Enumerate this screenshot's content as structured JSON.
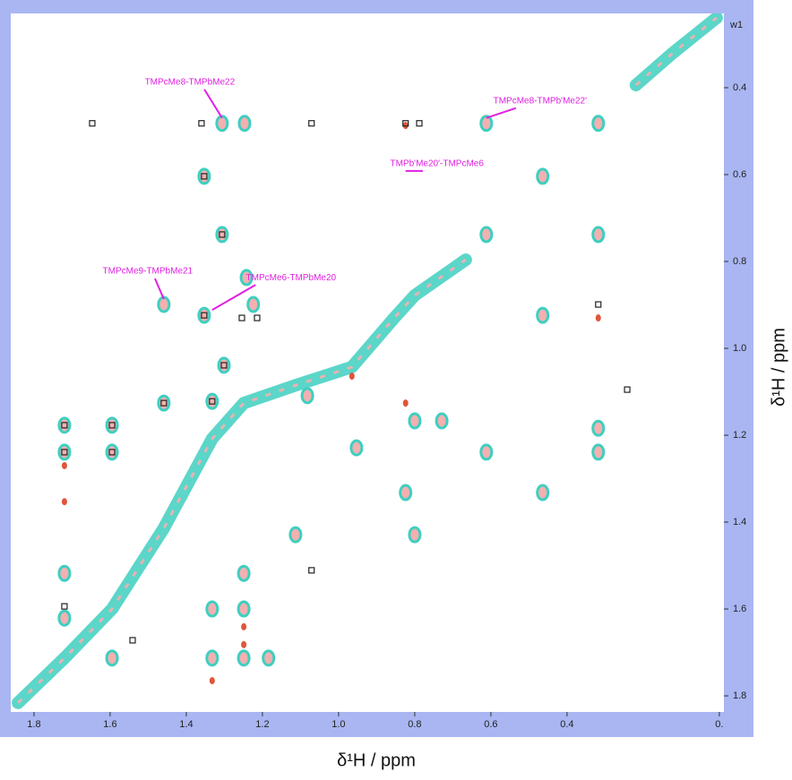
{
  "chart_data": {
    "type": "scatter",
    "x_label": "δ¹H / ppm",
    "y_label": "δ¹H / ppm",
    "corner_label": "w1",
    "xlim": [
      1.861,
      -0.012
    ],
    "ylim": [
      0.229,
      1.837
    ],
    "xticks": [
      1.8,
      1.6,
      1.4,
      1.2,
      {
        "value": 1,
        "label": "1.0"
      },
      0.8,
      0.6,
      0.4,
      {
        "value": 0,
        "label": "0."
      }
    ],
    "yticks": [
      0.4,
      0.6,
      0.8,
      {
        "value": 1,
        "label": "1.0"
      },
      1.2,
      1.4,
      1.6,
      1.8
    ],
    "series": [
      {
        "marker": "line",
        "color": "#3ecfc0",
        "x": [
          1.842,
          1.72,
          1.595,
          1.459,
          1.332,
          1.249,
          1.113,
          0.965,
          0.854,
          0.8,
          0.666,
          null,
          0.219,
          0.125,
          0.007
        ],
        "values": [
          1.816,
          1.713,
          1.6,
          1.414,
          1.208,
          1.126,
          1.085,
          1.043,
          0.93,
          0.878,
          0.796,
          null,
          0.394,
          0.322,
          0.239
        ]
      },
      {
        "marker": "ellipse",
        "color": "#3ecfc0",
        "x": [
          1.306,
          1.247,
          0.612,
          0.318,
          1.353,
          0.464,
          1.306,
          0.612,
          0.318,
          1.242,
          1.459,
          1.224,
          1.353,
          0.464,
          1.301,
          1.459,
          1.72,
          1.595,
          1.332,
          1.72,
          1.595,
          1.082,
          0.8,
          0.729,
          0.318,
          0.318,
          0.612,
          0.953,
          0.464,
          0.824,
          0.8,
          1.113,
          1.72,
          1.249,
          1.72,
          1.332,
          1.249,
          1.332,
          1.595,
          1.249,
          1.184
        ],
        "values": [
          0.482,
          0.482,
          0.482,
          0.482,
          0.604,
          0.604,
          0.738,
          0.738,
          0.738,
          0.837,
          0.899,
          0.899,
          0.924,
          0.924,
          1.039,
          1.126,
          1.177,
          1.177,
          1.122,
          1.239,
          1.239,
          1.109,
          1.167,
          1.167,
          1.184,
          1.239,
          1.239,
          1.229,
          1.332,
          1.332,
          1.429,
          1.429,
          1.518,
          1.518,
          1.621,
          1.6,
          1.6,
          1.713,
          1.713,
          1.713,
          1.713
        ]
      },
      {
        "marker": "dot",
        "color": "#e0553a",
        "x": [
          0.824,
          0.318,
          0.824,
          1.72,
          1.72,
          1.249,
          1.249,
          0.965,
          1.332
        ],
        "values": [
          0.487,
          0.93,
          1.126,
          1.27,
          1.353,
          1.641,
          1.682,
          1.064,
          1.765
        ]
      },
      {
        "marker": "box",
        "color": "#222222",
        "x": [
          1.647,
          1.36,
          1.071,
          0.824,
          0.788,
          1.353,
          1.306,
          1.353,
          1.254,
          1.214,
          0.318,
          1.301,
          1.459,
          1.72,
          1.595,
          1.332,
          1.72,
          1.595,
          1.071,
          1.72,
          1.541,
          0.242
        ],
        "values": [
          0.482,
          0.482,
          0.482,
          0.482,
          0.482,
          0.604,
          0.738,
          0.924,
          0.93,
          0.93,
          0.899,
          1.039,
          1.126,
          1.177,
          1.177,
          1.122,
          1.239,
          1.239,
          1.511,
          1.594,
          1.672,
          1.095
        ]
      }
    ],
    "annotation_color": "#e020e0",
    "annotations": [
      {
        "text": "TMPcMe8-TMPbMe22",
        "x": 1.306,
        "y": 0.482
      },
      {
        "text": "TMPcMe8-TMPb'Me22'",
        "x": 0.612,
        "y": 0.482
      },
      {
        "text": "TMPb'Me20'-TMPcMe6",
        "x": 0.824,
        "y": 0.604
      },
      {
        "text": "TMPcMe9-TMPbMe21",
        "x": 1.459,
        "y": 0.899
      },
      {
        "text": "TMPcMe6-TMPbMe20",
        "x": 1.332,
        "y": 0.924
      }
    ]
  }
}
